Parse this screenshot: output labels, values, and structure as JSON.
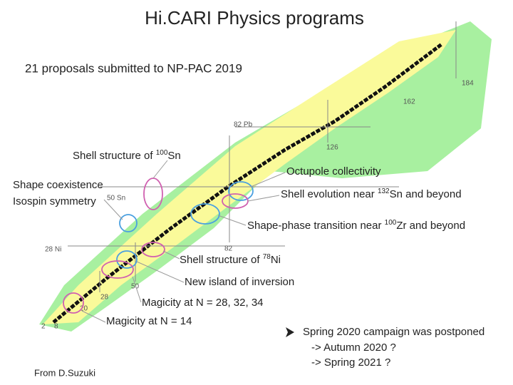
{
  "title": "Hi.CARI Physics programs",
  "subtitle": "21 proposals submitted to NP-PAC 2019",
  "chart_labels": [
    "82 Pb",
    "126",
    "184",
    "162",
    "50 Sn",
    "82",
    "28 Ni",
    "50",
    "28",
    "20",
    "2",
    "8"
  ],
  "sup_annotations": [
    {
      "text": "Shell structure of ",
      "sup": "100",
      "tail": "Sn"
    },
    {
      "text": "Shell evolution near ",
      "sup": "132",
      "tail": "Sn and beyond"
    },
    {
      "text": "Shape-phase transition near ",
      "sup": "100",
      "tail": "Zr and beyond"
    },
    {
      "text": "Shell structure of ",
      "sup": "78",
      "tail": "Ni"
    }
  ],
  "annotations": [
    "Octupole collectivity",
    "Shape coexistence",
    "Isospin symmetry",
    "New island of inversion",
    "Magicity at N = 28, 32, 34",
    "Magicity at N = 14"
  ],
  "bullet": {
    "text": "Spring 2020 campaign was postponed",
    "lines": [
      "-> Autumn 2020 ?",
      "-> Spring 2021 ?"
    ]
  },
  "credit": "From D.Suzuki"
}
